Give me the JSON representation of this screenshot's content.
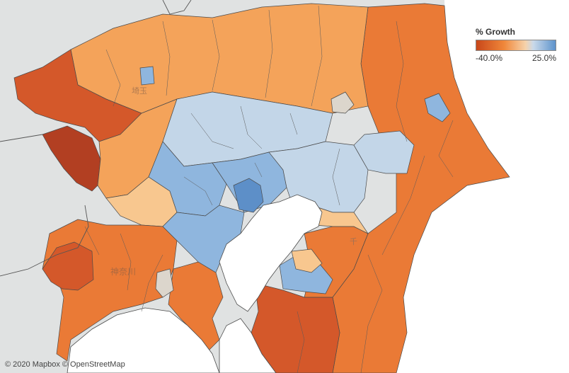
{
  "legend": {
    "title": "% Growth",
    "min_label": "-40.0%",
    "max_label": "25.0%",
    "color_low": "#c8471a",
    "color_mid": "#f6d2aa",
    "color_high": "#5d93cc"
  },
  "attribution": {
    "mapbox": "© 2020 Mapbox",
    "osm": "© OpenStreetMap"
  },
  "map_labels": {
    "saitama": "埼玉",
    "kanagawa": "神奈川",
    "chiba": "千"
  },
  "colors": {
    "water": "#ffffff",
    "land_outside": "#e0e2e2",
    "dark_decline": "#b23f22",
    "strong_decline": "#d4582a",
    "decline": "#ea7a36",
    "mild_decline": "#f4a35a",
    "slight_decline": "#f8c78f",
    "neutral": "#dcd6cc",
    "slight_growth": "#c3d6e8",
    "growth": "#8fb6de",
    "strong_growth": "#5d8fc8",
    "border": "#4a4a4a"
  }
}
